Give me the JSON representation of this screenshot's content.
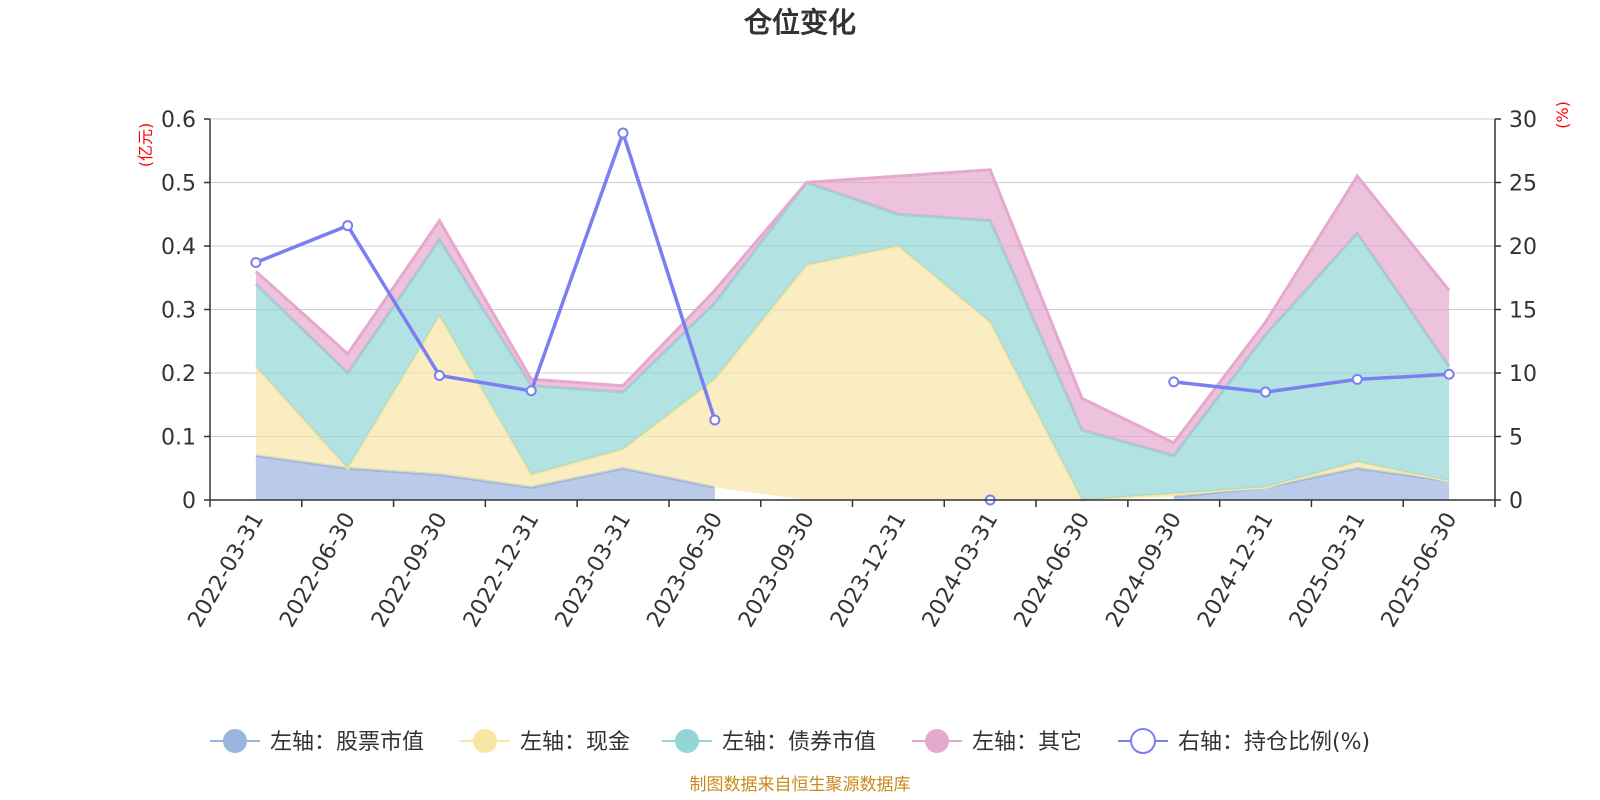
{
  "chart_data": {
    "type": "area",
    "title": "仓位变化",
    "left_unit": "(亿元)",
    "right_unit": "(%)",
    "categories": [
      "2022-03-31",
      "2022-06-30",
      "2022-09-30",
      "2022-12-31",
      "2023-03-31",
      "2023-06-30",
      "2023-09-30",
      "2023-12-31",
      "2024-03-31",
      "2024-06-30",
      "2024-09-30",
      "2024-12-31",
      "2025-03-31",
      "2025-06-30"
    ],
    "left_axis": {
      "min": 0,
      "max": 0.6,
      "ticks": [
        "0",
        "0.1",
        "0.2",
        "0.3",
        "0.4",
        "0.5",
        "0.6"
      ]
    },
    "right_axis": {
      "min": 0,
      "max": 30,
      "ticks": [
        "0",
        "5",
        "10",
        "15",
        "20",
        "25",
        "30"
      ]
    },
    "stacked_series": [
      {
        "name": "左轴：股票市值",
        "color": "#9bb5e0",
        "values": [
          0.07,
          0.05,
          0.04,
          0.02,
          0.05,
          0.02,
          null,
          null,
          null,
          null,
          0.005,
          0.02,
          0.05,
          0.03
        ]
      },
      {
        "name": "左轴：现金",
        "color": "#f7e6a6",
        "values": [
          0.14,
          0.0,
          0.25,
          0.02,
          0.03,
          0.17,
          0.37,
          0.4,
          0.28,
          0.0,
          0.005,
          0.0,
          0.01,
          0.0
        ]
      },
      {
        "name": "左轴：债券市值",
        "color": "#93d6d6",
        "values": [
          0.13,
          0.15,
          0.12,
          0.14,
          0.09,
          0.12,
          0.13,
          0.05,
          0.16,
          0.11,
          0.06,
          0.24,
          0.36,
          0.18
        ]
      },
      {
        "name": "左轴：其它",
        "color": "#e6a8cf",
        "values": [
          0.02,
          0.03,
          0.03,
          0.01,
          0.01,
          0.02,
          0.0,
          0.06,
          0.08,
          0.05,
          0.02,
          0.02,
          0.09,
          0.12
        ]
      }
    ],
    "line_series": {
      "name": "右轴：持仓比例(%)",
      "color": "#7b7ff0",
      "values": [
        18.7,
        21.6,
        9.8,
        8.6,
        28.9,
        6.3,
        null,
        null,
        0.0,
        null,
        9.3,
        8.5,
        9.5,
        9.9
      ]
    },
    "legend_position": "bottom",
    "grid": true
  },
  "source_note": "制图数据来自恒生聚源数据库"
}
